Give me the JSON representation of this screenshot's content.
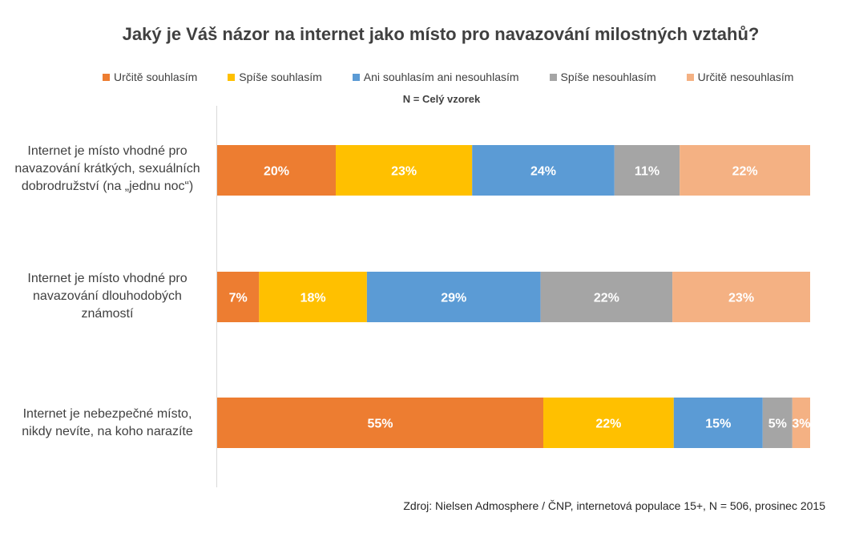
{
  "chart_data": {
    "type": "bar",
    "orientation": "horizontal",
    "stacked": true,
    "percent_stacked": true,
    "title": "Jaký je Váš názor na internet jako místo pro navazování milostných vztahů?",
    "subtitle": "N = Celý vzorek",
    "categories": [
      "Internet je místo vhodné pro navazování krátkých, sexuálních dobrodružství (na „jednu noc“)",
      "Internet je místo vhodné pro navazování dlouhodobých známostí",
      "Internet je nebezpečné místo, nikdy nevíte, na koho narazíte"
    ],
    "series": [
      {
        "name": "Určitě souhlasím",
        "color": "#ED7D31",
        "values": [
          20,
          7,
          55
        ]
      },
      {
        "name": "Spíše souhlasím",
        "color": "#FFC000",
        "values": [
          23,
          18,
          22
        ]
      },
      {
        "name": "Ani souhlasím ani nesouhlasím",
        "color": "#5B9BD5",
        "values": [
          24,
          29,
          15
        ]
      },
      {
        "name": "Spíše nesouhlasím",
        "color": "#A5A5A5",
        "values": [
          11,
          22,
          5
        ]
      },
      {
        "name": "Určitě nesouhlasím",
        "color": "#F4B183",
        "values": [
          22,
          23,
          3
        ]
      }
    ],
    "value_suffix": "%",
    "legend_position": "top",
    "grid": false,
    "source": "Zdroj: Nielsen Admosphere / ČNP, internetová populace 15+, N = 506, prosinec 2015"
  }
}
